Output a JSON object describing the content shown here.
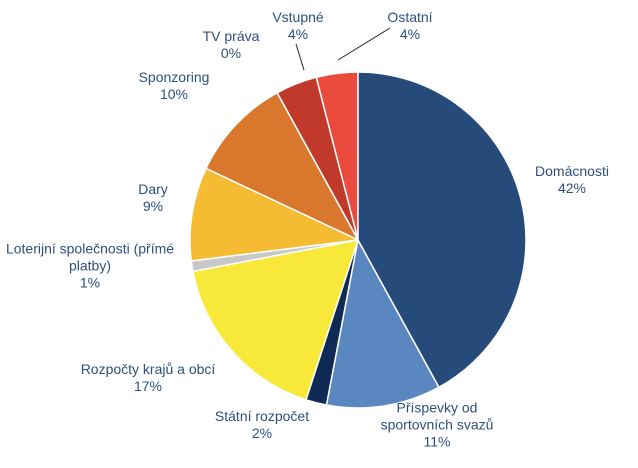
{
  "chart_data": {
    "type": "pie",
    "categories": [
      "Domácnosti",
      "Příspevky od sportovních svazů",
      "Státní rozpočet",
      "Rozpočty krajů a obcí",
      "Loterijní společnosti (přímé platby)",
      "Dary",
      "Sponzoring",
      "TV práva",
      "Vstupné",
      "Ostatní"
    ],
    "values": [
      42,
      11,
      2,
      17,
      1,
      9,
      10,
      0,
      4,
      4
    ],
    "value_labels": [
      "42%",
      "11%",
      "2%",
      "17%",
      "1%",
      "9%",
      "10%",
      "0%",
      "4%",
      "4%"
    ],
    "colors": [
      "#264b7a",
      "#5b87c0",
      "#0f2a55",
      "#f7e83a",
      "#c8c8c8",
      "#f5bb33",
      "#d9782c",
      "#a33a2a",
      "#c0392b",
      "#ea4b3c"
    ]
  }
}
